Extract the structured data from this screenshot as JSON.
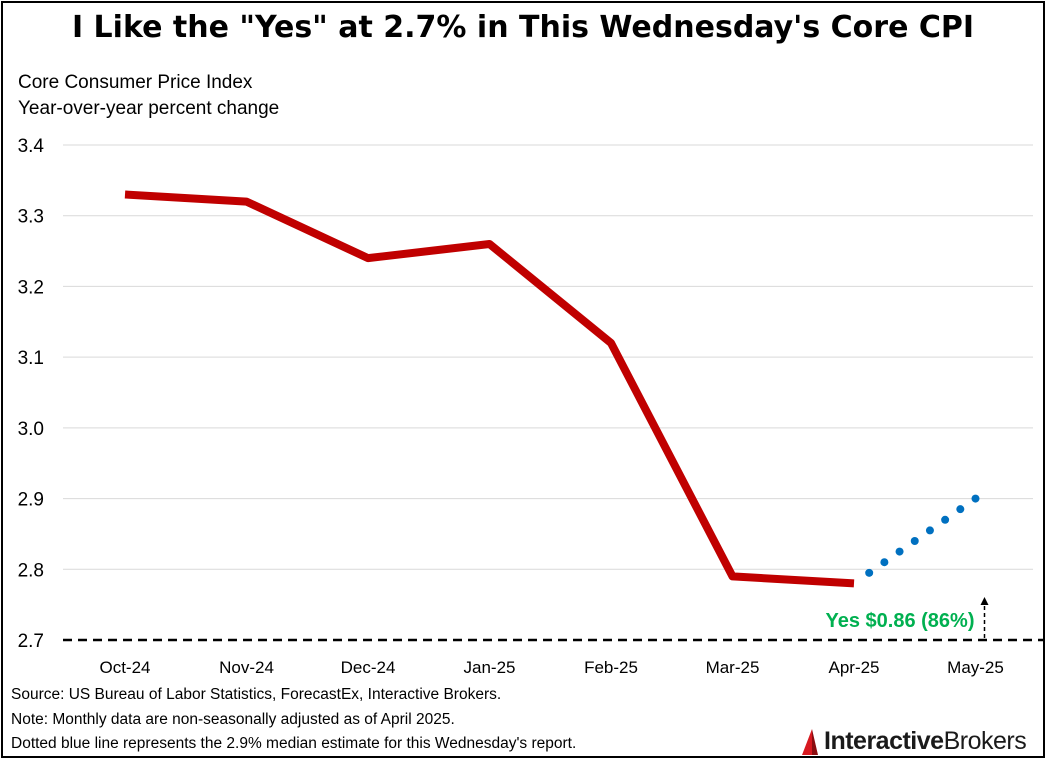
{
  "title": "I Like the \"Yes\" at 2.7% in This Wednesday's Core CPI",
  "subtitle_lines": [
    "Core Consumer Price Index",
    "Year-over-year percent change"
  ],
  "notes": [
    "Source: US Bureau of Labor Statistics, ForecastEx, Interactive Brokers.",
    "Note: Monthly data are non-seasonally adjusted as of April 2025.",
    "Dotted blue line represents the 2.9% median estimate for this Wednesday's report."
  ],
  "logo": {
    "word1": "Interactive",
    "word2": "Brokers"
  },
  "colors": {
    "actual": "#c00000",
    "estimate": "#0070c0",
    "annotation": "#00b050",
    "grid": "#d9d9d9",
    "threshold": "#000000"
  },
  "chart_data": {
    "type": "line",
    "categories": [
      "Oct-24",
      "Nov-24",
      "Dec-24",
      "Jan-25",
      "Feb-25",
      "Mar-25",
      "Apr-25",
      "May-25"
    ],
    "series": [
      {
        "values": [
          3.33,
          3.32,
          3.24,
          3.26,
          3.12,
          2.79,
          2.78,
          null
        ],
        "style": "solid",
        "color": "#c00000"
      },
      {
        "values": [
          null,
          null,
          null,
          null,
          null,
          null,
          2.78,
          2.9
        ],
        "style": "dotted",
        "color": "#0070c0"
      }
    ],
    "ylim": [
      2.7,
      3.4
    ],
    "yticks": [
      "3.4",
      "3.3",
      "3.2",
      "3.1",
      "3.0",
      "2.9",
      "2.8",
      "2.7"
    ],
    "grid": true,
    "threshold": {
      "value": 2.7,
      "style": "dashed"
    },
    "annotation": {
      "text": "Yes $0.86 (86%)",
      "anchor_category": "May-25",
      "arrow": "up"
    }
  }
}
